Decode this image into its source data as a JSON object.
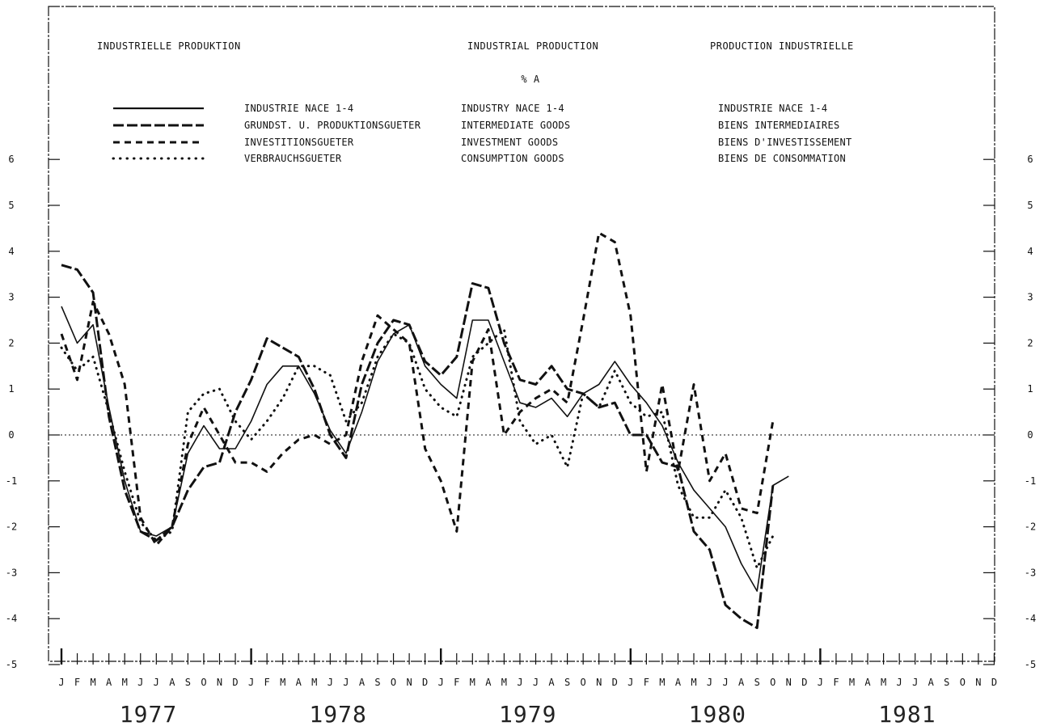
{
  "header": {
    "de": "INDUSTRIELLE PRODUKTION",
    "en": "INDUSTRIAL PRODUCTION",
    "fr": "PRODUCTION INDUSTRIELLE",
    "unit": "% A"
  },
  "legend": [
    {
      "de": "INDUSTRIE NACE 1-4",
      "en": "INDUSTRY NACE 1-4",
      "fr": "INDUSTRIE NACE 1-4",
      "style": "solid"
    },
    {
      "de": "GRUNDST. U. PRODUKTIONSGUETER",
      "en": "INTERMEDIATE GOODS",
      "fr": "BIENS INTERMEDIAIRES",
      "style": "longdash"
    },
    {
      "de": "INVESTITIONSGUETER",
      "en": "INVESTMENT GOODS",
      "fr": "BIENS D'INVESTISSEMENT",
      "style": "shortdash"
    },
    {
      "de": "VERBRAUCHSGUETER",
      "en": "CONSUMPTION GOODS",
      "fr": "BIENS DE CONSOMMATION",
      "style": "dotted"
    }
  ],
  "chart_data": {
    "type": "line",
    "title": "INDUSTRIAL PRODUCTION",
    "ylabel": "% A",
    "ylim": [
      -5,
      6.6
    ],
    "yticks": [
      6,
      5,
      4,
      3,
      2,
      1,
      0,
      -1,
      -2,
      -3,
      -4,
      -5
    ],
    "month_labels": [
      "J",
      "F",
      "M",
      "A",
      "M",
      "J",
      "J",
      "A",
      "S",
      "O",
      "N",
      "D"
    ],
    "years": [
      "1977",
      "1978",
      "1979",
      "1980",
      "1981"
    ],
    "x_unit": "month index from January 1977",
    "grid": false,
    "zero_line": true,
    "series": [
      {
        "name": "INDUSTRY NACE 1-4",
        "style": "solid",
        "x": [
          0,
          1,
          2,
          3,
          4,
          5,
          6,
          7,
          8,
          9,
          10,
          11,
          12,
          13,
          14,
          15,
          16,
          17,
          18,
          19,
          20,
          21,
          22,
          23,
          24,
          25,
          26,
          27,
          28,
          29,
          30,
          31,
          32,
          33,
          34,
          35,
          36,
          37,
          38,
          39,
          40,
          41,
          42,
          43,
          44,
          45,
          46
        ],
        "y": [
          2.8,
          2.0,
          2.4,
          0.6,
          -1.0,
          -2.1,
          -2.2,
          -2.0,
          -0.4,
          0.2,
          -0.3,
          -0.3,
          0.3,
          1.1,
          1.5,
          1.5,
          0.9,
          0.1,
          -0.4,
          0.5,
          1.6,
          2.2,
          2.4,
          1.5,
          1.1,
          0.8,
          2.5,
          2.5,
          1.6,
          0.7,
          0.6,
          0.8,
          0.4,
          0.9,
          1.1,
          1.6,
          1.1,
          0.7,
          0.2,
          -0.6,
          -1.2,
          -1.6,
          -2.0,
          -2.8,
          -3.4,
          -1.1,
          -0.9
        ]
      },
      {
        "name": "INTERMEDIATE GOODS",
        "style": "longdash",
        "x": [
          0,
          1,
          2,
          3,
          4,
          5,
          6,
          7,
          8,
          9,
          10,
          11,
          12,
          13,
          14,
          15,
          16,
          17,
          18,
          19,
          20,
          21,
          22,
          23,
          24,
          25,
          26,
          27,
          28,
          29,
          30,
          31,
          32,
          33,
          34,
          35,
          36,
          37,
          38,
          39,
          40,
          41,
          42,
          43,
          44,
          45
        ],
        "y": [
          3.7,
          3.6,
          3.1,
          0.4,
          -1.2,
          -2.1,
          -2.3,
          -2.0,
          -1.2,
          -0.7,
          -0.6,
          0.5,
          1.2,
          2.1,
          1.9,
          1.7,
          1.0,
          0.0,
          -0.5,
          1.1,
          2.0,
          2.5,
          2.4,
          1.6,
          1.3,
          1.7,
          3.3,
          3.2,
          2.0,
          1.2,
          1.1,
          1.5,
          1.0,
          0.9,
          0.6,
          0.7,
          0.0,
          0.0,
          -0.6,
          -0.7,
          -2.1,
          -2.5,
          -3.7,
          -4.0,
          -4.2,
          -1.1
        ]
      },
      {
        "name": "INVESTMENT GOODS",
        "style": "shortdash",
        "x": [
          0,
          1,
          2,
          3,
          4,
          5,
          6,
          7,
          8,
          9,
          10,
          11,
          12,
          13,
          14,
          15,
          16,
          17,
          18,
          19,
          20,
          21,
          22,
          23,
          24,
          25,
          26,
          27,
          28,
          29,
          30,
          31,
          32,
          33,
          34,
          35,
          36,
          37,
          38,
          39,
          40,
          41,
          42,
          43,
          44,
          45
        ],
        "y": [
          2.2,
          1.2,
          2.9,
          2.2,
          1.1,
          -1.8,
          -2.4,
          -2.0,
          -0.2,
          0.6,
          0.0,
          -0.6,
          -0.6,
          -0.8,
          -0.4,
          -0.1,
          0.0,
          -0.2,
          0.0,
          1.6,
          2.6,
          2.3,
          2.0,
          -0.3,
          -1.0,
          -2.1,
          1.6,
          2.3,
          0.0,
          0.5,
          0.8,
          1.0,
          0.7,
          2.5,
          4.4,
          4.2,
          2.6,
          -0.8,
          1.1,
          -0.8,
          1.1,
          -1.0,
          -0.4,
          -1.6,
          -1.7,
          0.3
        ]
      },
      {
        "name": "CONSUMPTION GOODS",
        "style": "dotted",
        "x": [
          0,
          1,
          2,
          3,
          4,
          5,
          6,
          7,
          8,
          9,
          10,
          11,
          12,
          13,
          14,
          15,
          16,
          17,
          18,
          19,
          20,
          21,
          22,
          23,
          24,
          25,
          26,
          27,
          28,
          29,
          30,
          31,
          32,
          33,
          34,
          35,
          36,
          37,
          38,
          39,
          40,
          41,
          42,
          43,
          44,
          45
        ],
        "y": [
          1.9,
          1.4,
          1.7,
          0.5,
          -0.8,
          -1.9,
          -2.3,
          -2.1,
          0.5,
          0.9,
          1.0,
          0.3,
          -0.1,
          0.3,
          0.8,
          1.5,
          1.5,
          1.3,
          0.3,
          0.7,
          1.7,
          2.2,
          2.0,
          1.0,
          0.6,
          0.4,
          1.7,
          2.0,
          2.3,
          0.3,
          -0.2,
          0.0,
          -0.7,
          0.9,
          0.6,
          1.4,
          0.7,
          0.4,
          0.5,
          -1.1,
          -1.8,
          -1.8,
          -1.2,
          -1.8,
          -2.9,
          -2.2
        ]
      }
    ]
  }
}
